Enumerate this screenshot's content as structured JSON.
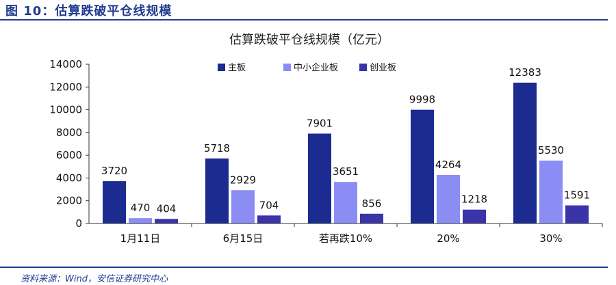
{
  "figure": {
    "title": "图 10：估算跌破平仓线规模",
    "source": "资料来源：Wind，安信证券研究中心"
  },
  "chart_data": {
    "type": "bar",
    "title": "估算跌破平仓线规模（亿元）",
    "xlabel": "",
    "ylabel": "",
    "categories": [
      "1月11日",
      "6月15日",
      "若再跌10%",
      "20%",
      "30%"
    ],
    "series": [
      {
        "name": "主板",
        "values": [
          3720,
          5718,
          7901,
          9998,
          12383
        ],
        "color": "#1c2b8f"
      },
      {
        "name": "中小企业板",
        "values": [
          470,
          2929,
          3651,
          4264,
          5530
        ],
        "color": "#8c8cf5"
      },
      {
        "name": "创业板",
        "values": [
          404,
          704,
          856,
          1218,
          1591
        ],
        "color": "#3b33a8"
      }
    ],
    "ylim": [
      0,
      14000
    ],
    "yticks": [
      0,
      2000,
      4000,
      6000,
      8000,
      10000,
      12000,
      14000
    ],
    "grid": false,
    "legend_position": "top"
  }
}
